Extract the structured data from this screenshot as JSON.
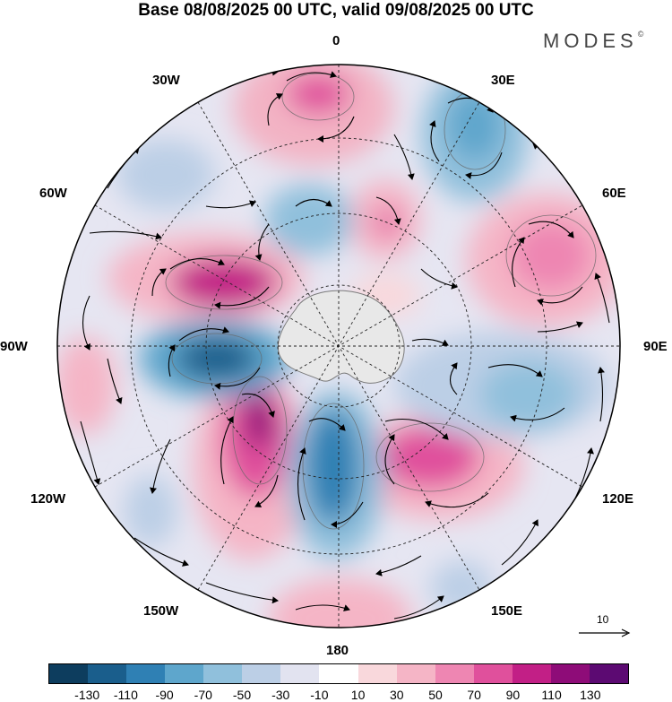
{
  "title": "Base 08/08/2025 00 UTC, valid 09/08/2025 00 UTC",
  "brand": "MODES",
  "brand_mark": "©",
  "lon_labels": {
    "lon_0": "0",
    "lon_30e": "30E",
    "lon_60e": "60E",
    "lon_90e": "90E",
    "lon_120e": "120E",
    "lon_150e": "150E",
    "lon_180": "180",
    "lon_150w": "150W",
    "lon_120w": "120W",
    "lon_90w": "90W",
    "lon_60w": "60W",
    "lon_30w": "30W"
  },
  "reference_vector": {
    "label": "10",
    "icon": "arrow-right-icon"
  },
  "colorbar": {
    "colors": [
      "#0d3d5e",
      "#1a5e8c",
      "#2f80b4",
      "#5ea6cc",
      "#90c0dc",
      "#bccfe6",
      "#e2e3f0",
      "#ffffff",
      "#f9d8dc",
      "#f5b5c6",
      "#ee86b2",
      "#e0509c",
      "#c21f86",
      "#8e0c78",
      "#5c0a72"
    ],
    "tick_labels": [
      "-130",
      "-110",
      "-90",
      "-70",
      "-50",
      "-30",
      "-10",
      "10",
      "30",
      "50",
      "70",
      "90",
      "110",
      "130"
    ]
  },
  "palette": {
    "land": "#e8e8e8",
    "coast": "#7a7a7a",
    "grid": "#222222",
    "arrow": "#000000"
  }
}
